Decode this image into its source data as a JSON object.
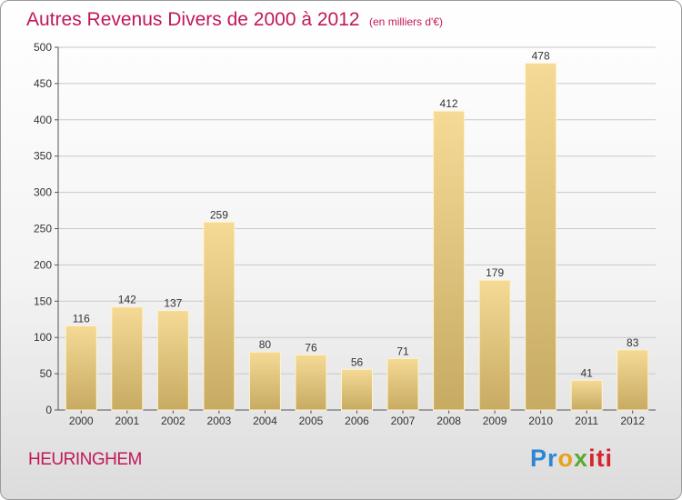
{
  "chart_data": {
    "type": "bar",
    "title": "Autres Revenus Divers de 2000 à 2012",
    "subtitle": "(en milliers d'€)",
    "categories": [
      "2000",
      "2001",
      "2002",
      "2003",
      "2004",
      "2005",
      "2006",
      "2007",
      "2008",
      "2009",
      "2010",
      "2011",
      "2012"
    ],
    "values": [
      116,
      142,
      137,
      259,
      80,
      76,
      56,
      71,
      412,
      179,
      478,
      41,
      83
    ],
    "ylim": [
      0,
      500
    ],
    "yticks": [
      0,
      50,
      100,
      150,
      200,
      250,
      300,
      350,
      400,
      450,
      500
    ],
    "grid": true,
    "bar_color_top": "#f5da96",
    "bar_color_bottom": "#c7ab62",
    "title_color": "#c0185a"
  },
  "place_name": "HEURINGHEM",
  "brand": {
    "parts": [
      "Pr",
      "o",
      "x",
      "iti"
    ],
    "colors": [
      "#2e86d4",
      "#e8a21a",
      "#5aa832",
      "#d6252f"
    ]
  }
}
